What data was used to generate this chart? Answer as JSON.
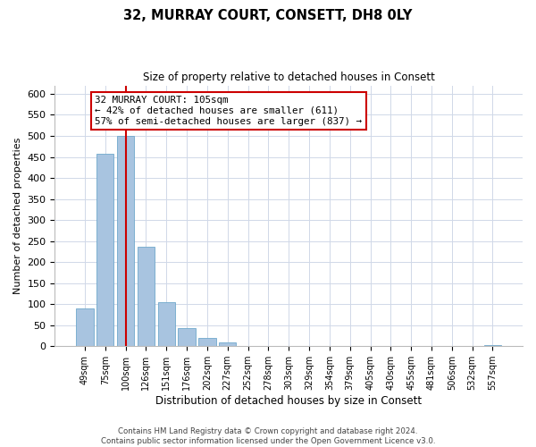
{
  "title": "32, MURRAY COURT, CONSETT, DH8 0LY",
  "subtitle": "Size of property relative to detached houses in Consett",
  "xlabel": "Distribution of detached houses by size in Consett",
  "ylabel": "Number of detached properties",
  "bar_labels": [
    "49sqm",
    "75sqm",
    "100sqm",
    "126sqm",
    "151sqm",
    "176sqm",
    "202sqm",
    "227sqm",
    "252sqm",
    "278sqm",
    "303sqm",
    "329sqm",
    "354sqm",
    "379sqm",
    "405sqm",
    "430sqm",
    "455sqm",
    "481sqm",
    "506sqm",
    "532sqm",
    "557sqm"
  ],
  "bar_values": [
    90,
    457,
    500,
    236,
    104,
    44,
    20,
    10,
    0,
    0,
    0,
    0,
    0,
    0,
    0,
    0,
    0,
    0,
    0,
    0,
    2
  ],
  "bar_color": "#a8c4e0",
  "bar_edge_color": "#6fa8cc",
  "ylim": [
    0,
    620
  ],
  "yticks": [
    0,
    50,
    100,
    150,
    200,
    250,
    300,
    350,
    400,
    450,
    500,
    550,
    600
  ],
  "vline_x": 2,
  "vline_color": "#cc0000",
  "annotation_text": "32 MURRAY COURT: 105sqm\n← 42% of detached houses are smaller (611)\n57% of semi-detached houses are larger (837) →",
  "annotation_box_color": "#ffffff",
  "annotation_box_edge": "#cc0000",
  "footer_line1": "Contains HM Land Registry data © Crown copyright and database right 2024.",
  "footer_line2": "Contains public sector information licensed under the Open Government Licence v3.0.",
  "background_color": "#ffffff",
  "grid_color": "#d0d8e8"
}
